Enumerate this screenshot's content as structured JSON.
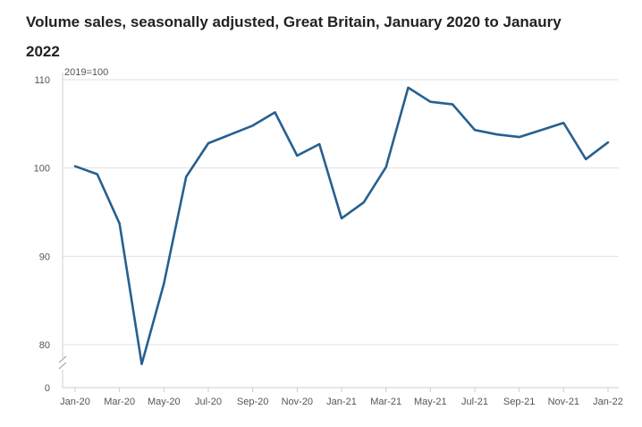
{
  "title": "Volume sales, seasonally adjusted, Great Britain, January 2020 to Janaury 2022",
  "chart_data": {
    "type": "line",
    "title": "Volume sales, seasonally adjusted, Great Britain, January 2020 to Janaury 2022",
    "unit_label": "2019=100",
    "xlabel": "",
    "ylabel": "2019=100",
    "ylim": [
      75,
      110
    ],
    "y_break": true,
    "y_ticks": [
      110,
      100,
      90,
      80
    ],
    "y_zero_label": "0",
    "x_tick_labels": [
      "Jan-20",
      "Mar-20",
      "May-20",
      "Jul-20",
      "Sep-20",
      "Nov-20",
      "Jan-21",
      "Mar-21",
      "May-21",
      "Jul-21",
      "Sep-21",
      "Nov-21",
      "Jan-22"
    ],
    "grid": true,
    "colors": {
      "line": "#27608f",
      "grid": "#e0e0e0",
      "axis": "#cccccc"
    },
    "series": [
      {
        "name": "Volume sales",
        "x": [
          "Jan-20",
          "Feb-20",
          "Mar-20",
          "Apr-20",
          "May-20",
          "Jun-20",
          "Jul-20",
          "Aug-20",
          "Sep-20",
          "Oct-20",
          "Nov-20",
          "Dec-20",
          "Jan-21",
          "Feb-21",
          "Mar-21",
          "Apr-21",
          "May-21",
          "Jun-21",
          "Jul-21",
          "Aug-21",
          "Sep-21",
          "Oct-21",
          "Nov-21",
          "Dec-21",
          "Jan-22"
        ],
        "values": [
          100.2,
          99.3,
          93.7,
          77.8,
          86.9,
          99.0,
          102.8,
          103.8,
          104.8,
          106.3,
          101.4,
          102.7,
          94.3,
          96.1,
          100.1,
          109.1,
          107.5,
          107.2,
          104.3,
          103.8,
          103.5,
          104.3,
          105.1,
          101.0,
          102.9
        ]
      }
    ]
  }
}
